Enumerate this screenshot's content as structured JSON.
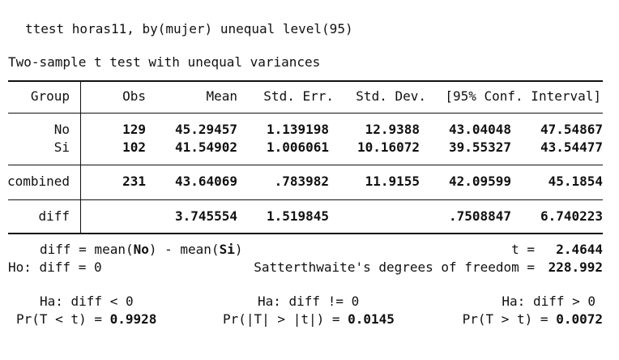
{
  "command": "ttest horas11, by(mujer) unequal level(95)",
  "title": "Two-sample t test with unequal variances",
  "columns": {
    "group": "Group",
    "obs": "Obs",
    "mean": "Mean",
    "std_err": "Std. Err.",
    "std_dev": "Std. Dev.",
    "conf_interval": "[95% Conf. Interval]"
  },
  "rows": {
    "no": {
      "group": "No",
      "obs": "129",
      "mean": "45.29457",
      "std_err": "1.139198",
      "std_dev": "12.9388",
      "ci_low": "43.04048",
      "ci_high": "47.54867"
    },
    "si": {
      "group": "Si",
      "obs": "102",
      "mean": "41.54902",
      "std_err": "1.006061",
      "std_dev": "10.16072",
      "ci_low": "39.55327",
      "ci_high": "43.54477"
    },
    "combined": {
      "group": "combined",
      "obs": "231",
      "mean": "43.64069",
      "std_err": ".783982",
      "std_dev": "11.9155",
      "ci_low": "42.09599",
      "ci_high": "45.1854"
    },
    "diff": {
      "group": "diff",
      "mean": "3.745554",
      "std_err": "1.519845",
      "ci_low": ".7508847",
      "ci_high": "6.740223"
    }
  },
  "summary": {
    "diff_prefix": "diff = mean(",
    "group1": "No",
    "diff_middle": ") - mean(",
    "group2": "Si",
    "diff_suffix": ")",
    "t_label": "t =",
    "t_value": "2.4644",
    "h0": "Ho: diff = 0",
    "df_label": "Satterthwaite's degrees of freedom =",
    "df_value": "228.992"
  },
  "hypotheses": {
    "left": {
      "ha": "Ha: diff < 0",
      "pr": "Pr(T < t) =",
      "p": "0.9928"
    },
    "middle": {
      "ha": "Ha: diff != 0",
      "pr": "Pr(|T| > |t|) =",
      "p": "0.0145"
    },
    "right": {
      "ha": "Ha: diff > 0",
      "pr": "Pr(T > t) =",
      "p": "0.0072"
    }
  }
}
